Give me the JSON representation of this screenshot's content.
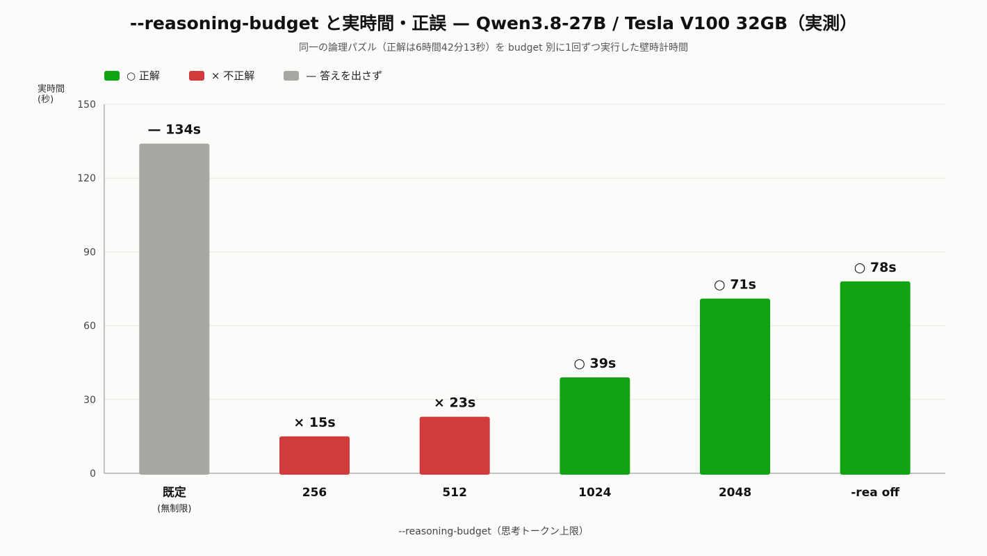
{
  "chart_data": {
    "type": "bar",
    "title": "--reasoning-budget と実時間・正誤 — Qwen3.8-27B / Tesla V100 32GB（実測）",
    "subtitle": "同一の論理パズル（正解は6時間42分13秒）を budget 別に1回ずつ実行した壁時計時間",
    "ylabel": [
      "実時間",
      "(秒)"
    ],
    "xlabel": "--reasoning-budget（思考トークン上限）",
    "ylim": [
      0,
      150
    ],
    "yticks": [
      0,
      30,
      60,
      90,
      120,
      150
    ],
    "grid": true,
    "legend_placement": "top-left",
    "legend": [
      {
        "label": "○ 正解",
        "color": "#12a312"
      },
      {
        "label": "× 不正解",
        "color": "#d13b3b"
      },
      {
        "label": "— 答えを出さず",
        "color": "#a8a7a2"
      }
    ],
    "categories": [
      "既定",
      "256",
      "512",
      "1024",
      "2048",
      "-rea off"
    ],
    "category_sublabels": [
      "(無制限)",
      "",
      "",
      "",
      "",
      ""
    ],
    "values": [
      134,
      15,
      23,
      39,
      71,
      78
    ],
    "data_labels": [
      "— 134s",
      "× 15s",
      "× 23s",
      "○ 39s",
      "○ 71s",
      "○ 78s"
    ],
    "outcome": [
      "no-answer",
      "incorrect",
      "incorrect",
      "correct",
      "correct",
      "correct"
    ],
    "colors": [
      "#a8a7a2",
      "#d13b3b",
      "#d13b3b",
      "#12a312",
      "#12a312",
      "#12a312"
    ]
  }
}
